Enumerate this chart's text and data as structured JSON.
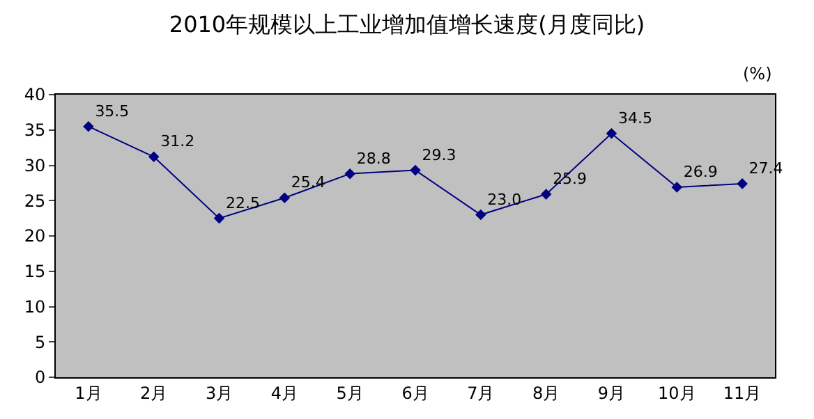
{
  "chart_data": {
    "type": "line",
    "title": "2010年规模以上工业增加值增长速度(月度同比)",
    "categories": [
      "1月",
      "2月",
      "3月",
      "4月",
      "5月",
      "6月",
      "7月",
      "8月",
      "9月",
      "10月",
      "11月"
    ],
    "series": [
      {
        "color": "#000080",
        "values": [
          35.5,
          31.2,
          22.5,
          25.4,
          28.8,
          29.3,
          23.0,
          25.9,
          34.5,
          26.9,
          27.4
        ],
        "value_labels": [
          "35.5",
          "31.2",
          "22.5",
          "25.4",
          "28.8",
          "29.3",
          "23.0",
          "25.9",
          "34.5",
          "26.9",
          "27.4"
        ]
      }
    ],
    "ylim": [
      0,
      40
    ],
    "yticks": [
      0,
      5,
      10,
      15,
      20,
      25,
      30,
      35,
      40
    ],
    "annotations": [
      "(%)"
    ],
    "grid": false,
    "marker": "diamond",
    "line_style": "solid"
  }
}
